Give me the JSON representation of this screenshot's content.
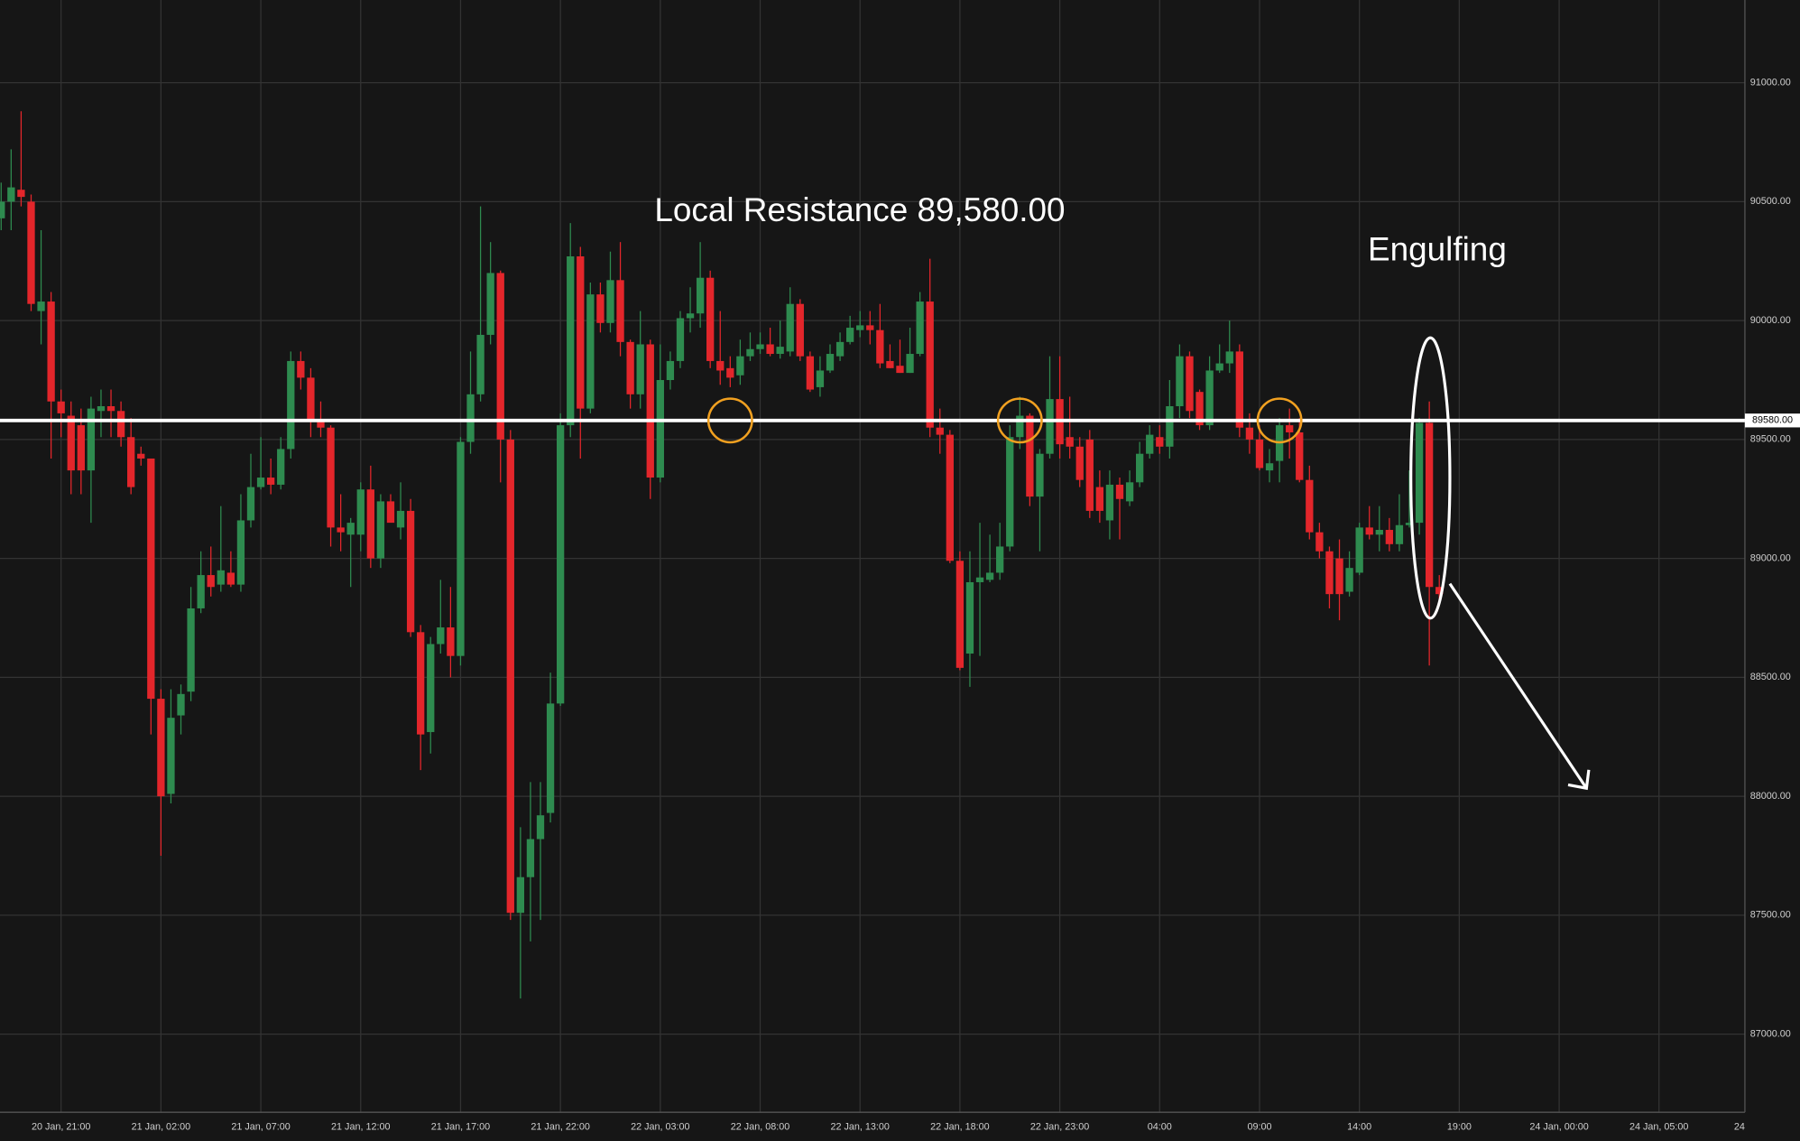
{
  "chart_data": {
    "type": "candlestick",
    "xticks": [
      {
        "value": 6,
        "label": "20 Jan, 21:00"
      },
      {
        "value": 16,
        "label": "21 Jan, 02:00"
      },
      {
        "value": 26,
        "label": "21 Jan, 07:00"
      },
      {
        "value": 36,
        "label": "21 Jan, 12:00"
      },
      {
        "value": 46,
        "label": "21 Jan, 17:00"
      },
      {
        "value": 56,
        "label": "21 Jan, 22:00"
      },
      {
        "value": 66,
        "label": "22 Jan, 03:00"
      },
      {
        "value": 76,
        "label": "22 Jan, 08:00"
      },
      {
        "value": 86,
        "label": "22 Jan, 13:00"
      },
      {
        "value": 96,
        "label": "22 Jan, 18:00"
      },
      {
        "value": 106,
        "label": "22 Jan, 23:00"
      },
      {
        "value": 116,
        "label": "04:00"
      },
      {
        "value": 126,
        "label": "09:00"
      },
      {
        "value": 136,
        "label": "14:00"
      },
      {
        "value": 146,
        "label": "19:00"
      },
      {
        "value": 156,
        "label": "24 Jan, 00:00"
      },
      {
        "value": 166,
        "label": "24 Jan, 05:00"
      },
      {
        "value": 176,
        "label": "24"
      }
    ],
    "xlim": [
      -0.115,
      174.6
    ],
    "ylim": [
      86671.5,
      91347.8
    ],
    "yticks": [
      {
        "value": 87000,
        "label": "87000.00"
      },
      {
        "value": 87500,
        "label": "87500.00"
      },
      {
        "value": 88000,
        "label": "88000.00"
      },
      {
        "value": 88500,
        "label": "88500.00"
      },
      {
        "value": 89000,
        "label": "89000.00"
      },
      {
        "value": 89500,
        "label": "89500.00"
      },
      {
        "value": 90000,
        "label": "90000.00"
      },
      {
        "value": 90500,
        "label": "90500.00"
      },
      {
        "value": 91000,
        "label": "91000.00"
      }
    ],
    "grid": true,
    "up_color": "#2e8b4f",
    "down_color": "#e3262b",
    "resistance": {
      "value": 89580,
      "label": "89580.00",
      "color": "#ffffff"
    },
    "annotations": [
      {
        "text": "Local Resistance 89,580.00"
      },
      {
        "text": "Engulfing"
      }
    ],
    "open": [
      90430,
      90500,
      90550,
      90500,
      90040,
      90080,
      89660,
      89600,
      89560,
      89370,
      89620,
      89640,
      89620,
      89510,
      89440,
      89420,
      88410,
      88010,
      88340,
      88440,
      88790,
      88930,
      88890,
      88940,
      88890,
      89160,
      89300,
      89340,
      89310,
      89460,
      89830,
      89760,
      89580,
      89550,
      89130,
      89100,
      89100,
      89290,
      89000,
      89240,
      89130,
      89200,
      88690,
      88270,
      88640,
      88710,
      88590,
      89490,
      89690,
      89940,
      90200,
      89500,
      87510,
      87660,
      87820,
      87930,
      88390,
      89560,
      90270,
      89630,
      90110,
      89990,
      90170,
      89910,
      89690,
      89900,
      89340,
      89750,
      89830,
      90010,
      90030,
      90180,
      89830,
      89800,
      89770,
      89850,
      89880,
      89900,
      89860,
      89870,
      90070,
      89850,
      89720,
      89790,
      89850,
      89910,
      89960,
      89980,
      89960,
      89830,
      89810,
      89780,
      89860,
      90080,
      89550,
      89520,
      88990,
      88600,
      88900,
      88910,
      88940,
      89050,
      89510,
      89600,
      89260,
      89440,
      89670,
      89510,
      89470,
      89500,
      89300,
      89160,
      89310,
      89240,
      89320,
      89440,
      89510,
      89470,
      89640,
      89850,
      89700,
      89560,
      89790,
      89820,
      89870,
      89550,
      89500,
      89370,
      89410,
      89560,
      89530,
      89330,
      89110,
      89030,
      89000,
      88860,
      88940,
      89130,
      89100,
      89120,
      89060,
      89140,
      89150,
      89570,
      88880
    ],
    "high": [
      90580,
      90720,
      90880,
      90530,
      90380,
      90120,
      89710,
      89660,
      89630,
      89680,
      89710,
      89710,
      89660,
      89590,
      89470,
      89420,
      88450,
      88450,
      88470,
      88880,
      89030,
      89050,
      89220,
      89030,
      89270,
      89440,
      89510,
      89420,
      89510,
      89870,
      89870,
      89800,
      89660,
      89560,
      89270,
      89170,
      89320,
      89390,
      89270,
      89270,
      89320,
      89250,
      88720,
      88670,
      88910,
      88880,
      89510,
      89870,
      90480,
      90330,
      90210,
      89540,
      87870,
      88060,
      88060,
      88520,
      89610,
      90410,
      90310,
      90160,
      90160,
      90290,
      90330,
      89920,
      90040,
      89920,
      89900,
      89870,
      90040,
      90140,
      90330,
      90210,
      90040,
      89850,
      89920,
      89950,
      89950,
      89970,
      90000,
      90140,
      90090,
      89870,
      89850,
      89900,
      89950,
      90020,
      90040,
      90040,
      90070,
      89900,
      89920,
      89970,
      90120,
      90260,
      89630,
      89540,
      89030,
      89030,
      89150,
      89100,
      89150,
      89560,
      89680,
      89610,
      89460,
      89850,
      89850,
      89680,
      89510,
      89540,
      89370,
      89370,
      89340,
      89370,
      89490,
      89560,
      89560,
      89750,
      89900,
      89870,
      89710,
      89850,
      89900,
      90000,
      89900,
      89610,
      89560,
      89460,
      89590,
      89630,
      89590,
      89390,
      89150,
      89050,
      89080,
      89030,
      89150,
      89220,
      89220,
      89170,
      89270,
      89370,
      89590,
      89660,
      88930
    ],
    "low": [
      90380,
      90380,
      90480,
      90040,
      89900,
      89420,
      89510,
      89270,
      89270,
      89150,
      89510,
      89510,
      89470,
      89270,
      89390,
      88260,
      87750,
      87970,
      88260,
      88400,
      88770,
      88840,
      88860,
      88880,
      88860,
      89130,
      89290,
      89270,
      89290,
      89420,
      89710,
      89510,
      89510,
      89050,
      89030,
      88880,
      89030,
      88960,
      88960,
      89170,
      89080,
      88670,
      88110,
      88180,
      88600,
      88500,
      88550,
      89440,
      89660,
      89900,
      89320,
      87480,
      87150,
      87390,
      87480,
      87890,
      88380,
      89510,
      89420,
      89610,
      89950,
      89950,
      89850,
      89630,
      89630,
      89250,
      89320,
      89710,
      89800,
      89950,
      89970,
      89800,
      89730,
      89720,
      89730,
      89830,
      89860,
      89850,
      89840,
      89850,
      89830,
      89700,
      89680,
      89780,
      89830,
      89900,
      89930,
      89900,
      89800,
      89800,
      89780,
      89780,
      89850,
      89510,
      89440,
      88980,
      88530,
      88460,
      88590,
      88900,
      88910,
      89030,
      89460,
      89220,
      89030,
      89420,
      89420,
      89420,
      89300,
      89170,
      89150,
      89080,
      89080,
      89220,
      89300,
      89420,
      89440,
      89420,
      89590,
      89590,
      89540,
      89540,
      89780,
      89780,
      89510,
      89440,
      89370,
      89320,
      89320,
      89420,
      89320,
      89080,
      89000,
      88790,
      88740,
      88840,
      88930,
      89080,
      89030,
      89030,
      89030,
      89130,
      89100,
      88550,
      88830
    ],
    "close": [
      90500,
      90560,
      90520,
      90070,
      90080,
      89660,
      89610,
      89370,
      89370,
      89630,
      89640,
      89620,
      89510,
      89300,
      89420,
      88410,
      88000,
      88330,
      88430,
      88790,
      88930,
      88880,
      88950,
      88890,
      89160,
      89300,
      89340,
      89310,
      89460,
      89830,
      89760,
      89580,
      89550,
      89130,
      89110,
      89150,
      89290,
      89000,
      89240,
      89150,
      89200,
      88690,
      88260,
      88640,
      88710,
      88590,
      89490,
      89690,
      89940,
      90200,
      89500,
      87510,
      87660,
      87820,
      87920,
      88390,
      89560,
      90270,
      89630,
      90110,
      89990,
      90170,
      89910,
      89690,
      89900,
      89340,
      89750,
      89830,
      90010,
      90030,
      90180,
      89830,
      89790,
      89760,
      89850,
      89880,
      89900,
      89860,
      89890,
      90070,
      89850,
      89710,
      89790,
      89860,
      89910,
      89970,
      89980,
      89960,
      89820,
      89800,
      89780,
      89860,
      90080,
      89550,
      89520,
      88990,
      88540,
      88900,
      88920,
      88940,
      89050,
      89510,
      89600,
      89260,
      89440,
      89670,
      89480,
      89470,
      89330,
      89200,
      89200,
      89310,
      89250,
      89320,
      89440,
      89520,
      89470,
      89640,
      89850,
      89620,
      89560,
      89790,
      89820,
      89870,
      89550,
      89500,
      89380,
      89400,
      89560,
      89530,
      89330,
      89110,
      89030,
      88850,
      88850,
      88960,
      89130,
      89100,
      89120,
      89060,
      89140,
      89150,
      89570,
      88880,
      88850
    ]
  }
}
